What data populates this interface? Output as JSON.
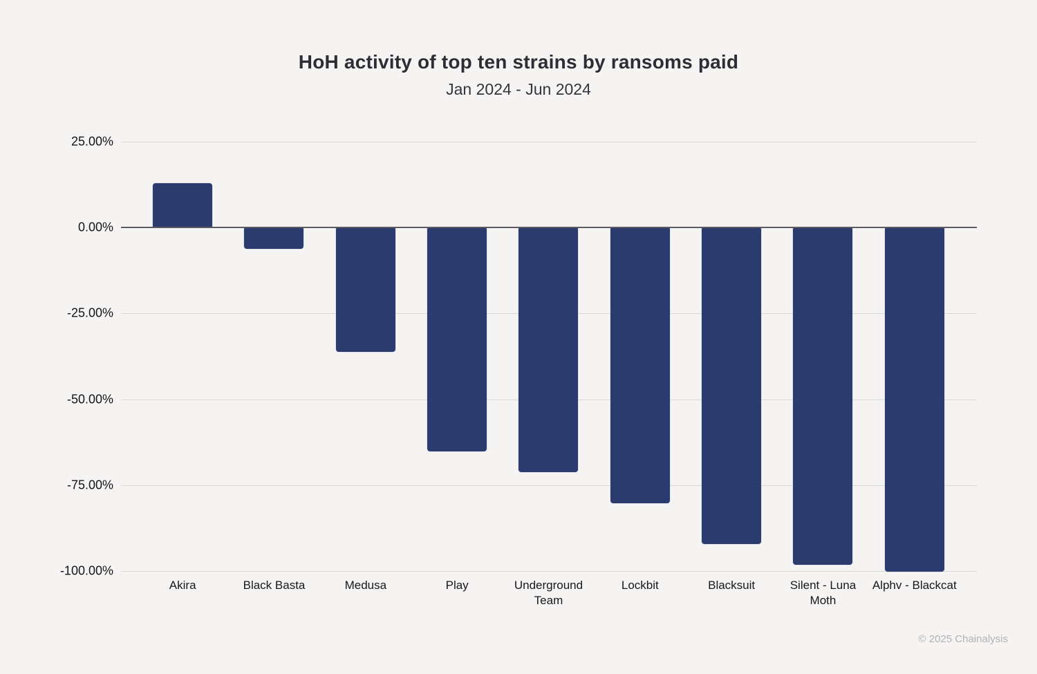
{
  "header": {
    "title": "HoH activity of top ten strains by ransoms paid",
    "subtitle": "Jan 2024 - Jun 2024"
  },
  "footer": {
    "copyright": "© 2025 Chainalysis"
  },
  "chart_data": {
    "type": "bar",
    "title": "HoH activity of top ten strains by ransoms paid",
    "subtitle": "Jan 2024 - Jun 2024",
    "categories": [
      "Akira",
      "Black Basta",
      "Medusa",
      "Play",
      "Underground Team",
      "Lockbit",
      "Blacksuit",
      "Silent - Luna Moth",
      "Alphv - Blackcat"
    ],
    "values": [
      13,
      -6,
      -36,
      -65,
      -71,
      -80,
      -92,
      -98,
      -100
    ],
    "unit": "%",
    "xlabel": "",
    "ylabel": "",
    "ylim": [
      -100,
      25
    ],
    "y_ticks": [
      "25.00%",
      "0.00%",
      "-25.00%",
      "-50.00%",
      "-75.00%",
      "-100.00%"
    ],
    "y_tick_values": [
      25,
      0,
      -25,
      -50,
      -75,
      -100
    ],
    "grid": true,
    "legend": "none",
    "colors": {
      "bar": "#2b3b6e",
      "background": "#f5f4f2",
      "zero_line": "#5a5a60",
      "gridline": "#d7d7d6"
    }
  }
}
